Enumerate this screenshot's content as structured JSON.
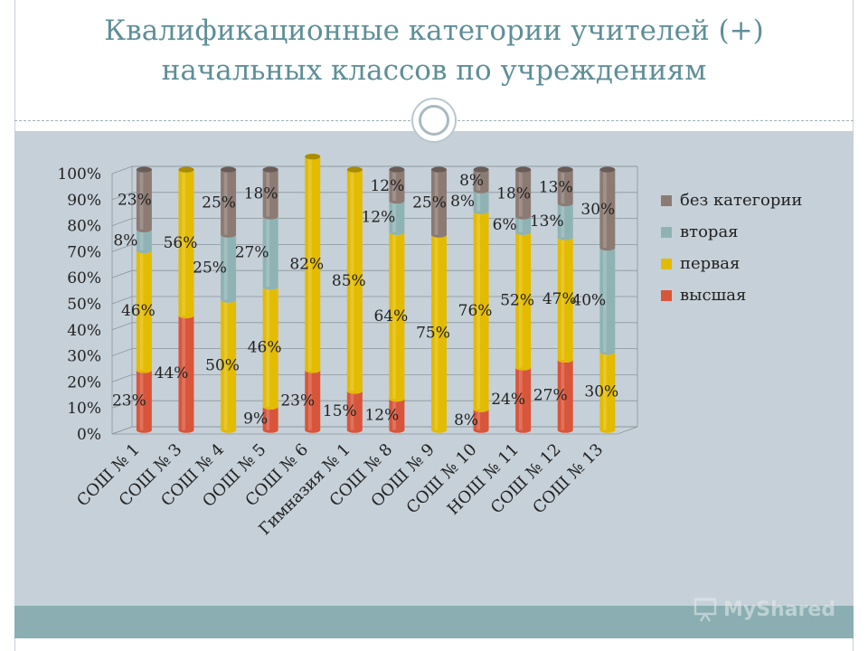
{
  "slide": {
    "title_line1": "Квалификационные категории учителей (+)",
    "title_line2": "начальных классов по учреждениям",
    "watermark": "MyShared"
  },
  "colors": {
    "title": "#5f8f97",
    "content_band": "#c6d0d8",
    "footer_band": "#8aaeb2",
    "высшая": "#d9553a",
    "первая": "#e3bb00",
    "вторая": "#8fb3b4",
    "без категории": "#8c7b73"
  },
  "chart_data": {
    "type": "bar",
    "stacked": true,
    "percent_stacked": true,
    "three_d": true,
    "title": "Квалификационные категории учителей (+) начальных классов по учреждениям",
    "xlabel": "",
    "ylabel": "",
    "ylim": [
      0,
      100
    ],
    "y_ticks": [
      "0%",
      "10%",
      "20%",
      "30%",
      "40%",
      "50%",
      "60%",
      "70%",
      "80%",
      "90%",
      "100%"
    ],
    "grid": true,
    "legend_position": "right",
    "categories": [
      "СОШ № 1",
      "СОШ № 3",
      "СОШ № 4",
      "ООШ № 5",
      "СОШ № 6",
      "Гимназия № 1",
      "СОШ № 8",
      "ООШ № 9",
      "СОШ № 10",
      "НОШ № 11",
      "СОШ № 12",
      "СОШ № 13"
    ],
    "series": [
      {
        "name": "высшая",
        "values": [
          23,
          44,
          0,
          9,
          23,
          15,
          12,
          0,
          8,
          24,
          27,
          0
        ],
        "labels": [
          "23%",
          "44%",
          "",
          "9%",
          "23%",
          "15%",
          "12%",
          "",
          "8%",
          "24%",
          "27%",
          ""
        ]
      },
      {
        "name": "первая",
        "values": [
          46,
          56,
          50,
          46,
          82,
          85,
          64,
          75,
          76,
          52,
          47,
          30
        ],
        "labels": [
          "46%",
          "56%",
          "50%",
          "46%",
          "82%",
          "85%",
          "64%",
          "75%",
          "76%",
          "52%",
          "47%",
          "30%"
        ]
      },
      {
        "name": "вторая",
        "values": [
          8,
          0,
          25,
          27,
          0,
          0,
          12,
          0,
          8,
          6,
          13,
          40
        ],
        "labels": [
          "8%",
          "",
          "25%",
          "27%",
          "",
          "",
          "12%",
          "",
          "8%",
          "6%",
          "13%",
          "40%"
        ]
      },
      {
        "name": "без категории",
        "values": [
          23,
          0,
          25,
          18,
          0,
          0,
          12,
          25,
          8,
          18,
          13,
          30
        ],
        "labels": [
          "23%",
          "",
          "25%",
          "18%",
          "",
          "",
          "12%",
          "25%",
          "8%",
          "18%",
          "13%",
          "30%"
        ]
      }
    ],
    "legend_order": [
      "без категории",
      "вторая",
      "первая",
      "высшая"
    ]
  }
}
